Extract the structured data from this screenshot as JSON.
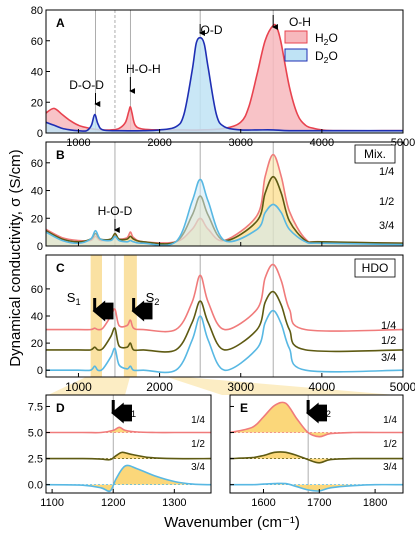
{
  "figure": {
    "ylabel": "Dynamical conductivity, σ (S/cm)",
    "xlabel": "Wavenumber (cm⁻¹)"
  },
  "colors": {
    "h2o": "#e8434f",
    "h2o_fill": "#f7b8bd",
    "d2o": "#1f2fb4",
    "d2o_fill": "#bfe3f5",
    "c14": "#f07b7b",
    "c12": "#5e5a12",
    "c34": "#58b8e3",
    "fill_yellow": "#fbd36b",
    "band": "#f9dc92"
  },
  "chart_data": [
    {
      "panel": "A",
      "type": "line",
      "xlim": [
        600,
        5000
      ],
      "ylim": [
        0,
        80
      ],
      "yticks": [
        0,
        20,
        40,
        60,
        80
      ],
      "xticks": [
        1000,
        2000,
        3000,
        4000,
        5000
      ],
      "legend": [
        "H2O",
        "D2O"
      ],
      "legend_position": "top-right",
      "annotations": [
        {
          "text": "D-O-D",
          "x": 1210
        },
        {
          "text": "H-O-H",
          "x": 1640
        },
        {
          "text": "O-D",
          "x": 2500
        },
        {
          "text": "O-H",
          "x": 3400
        }
      ],
      "series": [
        {
          "name": "H2O",
          "key": "h2o",
          "fill": true,
          "x": [
            600,
            700,
            800,
            900,
            1000,
            1100,
            1200,
            1300,
            1400,
            1500,
            1580,
            1620,
            1640,
            1660,
            1700,
            1800,
            2000,
            2200,
            2500,
            2800,
            3000,
            3100,
            3200,
            3300,
            3400,
            3450,
            3500,
            3600,
            3700,
            3800,
            3900,
            4000,
            4200,
            5000
          ],
          "y": [
            13,
            16,
            12,
            8,
            5,
            3.5,
            2.5,
            2,
            2,
            3,
            7,
            14,
            17,
            13,
            5,
            2.5,
            2,
            2,
            2,
            3,
            7,
            17,
            38,
            60,
            70,
            68,
            58,
            30,
            12,
            5,
            3,
            2,
            1.5,
            1.5
          ]
        },
        {
          "name": "D2O",
          "key": "d2o",
          "fill": true,
          "x": [
            600,
            700,
            800,
            900,
            1000,
            1100,
            1160,
            1200,
            1240,
            1300,
            1500,
            1800,
            2000,
            2200,
            2300,
            2400,
            2450,
            2500,
            2550,
            2600,
            2700,
            2800,
            3000,
            3200,
            3400,
            3600,
            4000,
            5000
          ],
          "y": [
            7,
            5,
            3,
            2,
            1.5,
            1.5,
            5,
            12,
            6,
            2,
            1.5,
            1.5,
            2,
            4,
            12,
            40,
            58,
            62,
            58,
            42,
            12,
            4,
            2,
            2,
            2,
            1.5,
            1.5,
            1.5
          ]
        }
      ]
    },
    {
      "panel": "B",
      "type": "area",
      "label": "Mix.",
      "xlim": [
        600,
        5000
      ],
      "ylim": [
        0,
        75
      ],
      "yticks": [
        0,
        20,
        40,
        60
      ],
      "annotations": [
        {
          "text": "H-O-D",
          "x": 1450
        }
      ],
      "series": [
        {
          "name": "1/4",
          "key": "c14",
          "x": [
            600,
            800,
            1000,
            1150,
            1210,
            1270,
            1400,
            1450,
            1500,
            1600,
            1640,
            1680,
            1800,
            2200,
            2400,
            2500,
            2600,
            2800,
            3200,
            3300,
            3400,
            3500,
            3600,
            3800,
            4000,
            5000
          ],
          "y": [
            12,
            6,
            4,
            4,
            7,
            4,
            5,
            8,
            5,
            6,
            10,
            6,
            3,
            3,
            12,
            20,
            12,
            4,
            22,
            50,
            66,
            50,
            25,
            5,
            3,
            2
          ]
        },
        {
          "name": "1/2",
          "key": "c12",
          "x": [
            600,
            800,
            1000,
            1150,
            1210,
            1270,
            1400,
            1450,
            1500,
            1600,
            1640,
            1680,
            1800,
            2200,
            2400,
            2500,
            2600,
            2800,
            3200,
            3300,
            3400,
            3500,
            3600,
            3800,
            4000,
            5000
          ],
          "y": [
            11,
            5,
            3,
            5,
            9,
            5,
            5,
            9,
            5,
            5,
            7,
            5,
            3,
            3,
            22,
            36,
            22,
            4,
            18,
            38,
            50,
            38,
            18,
            4,
            3,
            2
          ]
        },
        {
          "name": "3/4",
          "key": "c34",
          "x": [
            600,
            800,
            1000,
            1150,
            1210,
            1270,
            1400,
            1450,
            1500,
            1600,
            1640,
            1680,
            1800,
            2200,
            2400,
            2500,
            2600,
            2800,
            3200,
            3300,
            3400,
            3500,
            3600,
            3800,
            4000,
            5000
          ],
          "y": [
            10,
            4,
            2,
            5,
            11,
            5,
            4,
            7,
            4,
            3,
            4,
            3,
            2,
            3,
            32,
            48,
            32,
            4,
            12,
            24,
            30,
            24,
            12,
            3,
            2,
            1
          ]
        }
      ]
    },
    {
      "panel": "C",
      "type": "line",
      "label": "HDO",
      "xlim": [
        600,
        5000
      ],
      "ylim": [
        -5,
        85
      ],
      "yticks": [
        0,
        20,
        40,
        60
      ],
      "annotations": [
        {
          "text": "S1",
          "x": 1200
        },
        {
          "text": "S2",
          "x": 1680
        }
      ],
      "bands": [
        [
          1150,
          1290
        ],
        [
          1560,
          1720
        ]
      ],
      "series": [
        {
          "name": "1/4",
          "key": "c14",
          "x": [
            600,
            1000,
            1150,
            1200,
            1240,
            1300,
            1400,
            1450,
            1500,
            1600,
            1640,
            1680,
            1800,
            2200,
            2400,
            2500,
            2600,
            2800,
            3200,
            3300,
            3400,
            3500,
            3600,
            3800,
            5000
          ],
          "y": [
            30,
            30,
            30,
            31,
            30,
            31,
            40,
            45,
            33,
            33,
            37,
            31,
            30,
            30,
            50,
            70,
            50,
            30,
            45,
            68,
            78,
            66,
            45,
            30,
            30
          ]
        },
        {
          "name": "1/2",
          "key": "c12",
          "x": [
            600,
            1000,
            1150,
            1200,
            1240,
            1300,
            1400,
            1450,
            1500,
            1600,
            1640,
            1680,
            1800,
            2200,
            2400,
            2500,
            2600,
            2800,
            3200,
            3300,
            3400,
            3500,
            3600,
            3800,
            5000
          ],
          "y": [
            15,
            15,
            15,
            17,
            15,
            16,
            25,
            31,
            18,
            17,
            20,
            15,
            15,
            15,
            35,
            51,
            35,
            15,
            30,
            50,
            58,
            48,
            30,
            15,
            15
          ]
        },
        {
          "name": "3/4",
          "key": "c34",
          "x": [
            600,
            1000,
            1150,
            1200,
            1240,
            1300,
            1400,
            1450,
            1500,
            1600,
            1640,
            1680,
            1800,
            2200,
            2400,
            2500,
            2600,
            2800,
            3200,
            3300,
            3400,
            3500,
            3600,
            3800,
            5000
          ],
          "y": [
            0,
            0,
            0,
            3,
            0,
            1,
            10,
            16,
            4,
            1,
            3,
            0,
            0,
            0,
            22,
            40,
            22,
            0,
            16,
            35,
            44,
            34,
            16,
            0,
            0
          ]
        }
      ]
    },
    {
      "panel": "D",
      "type": "line",
      "annotations": [
        {
          "text": "S1",
          "x": 1200
        }
      ],
      "xlim": [
        1090,
        1360
      ],
      "ylim": [
        -0.8,
        8.6
      ],
      "yticks": [
        0.0,
        2.5,
        5.0,
        7.5
      ],
      "xticks": [
        1100,
        1200,
        1300
      ],
      "series": [
        {
          "name": "1/4",
          "key": "c14",
          "baseline": 5.0,
          "x": [
            1090,
            1150,
            1180,
            1200,
            1210,
            1220,
            1240,
            1270,
            1300,
            1360
          ],
          "y": [
            5.0,
            5.0,
            5.0,
            5.2,
            5.5,
            5.2,
            5.05,
            5.0,
            5.0,
            5.0
          ]
        },
        {
          "name": "1/2",
          "key": "c12",
          "baseline": 2.5,
          "x": [
            1090,
            1150,
            1180,
            1195,
            1205,
            1215,
            1230,
            1260,
            1300,
            1360
          ],
          "y": [
            2.5,
            2.5,
            2.45,
            2.4,
            2.8,
            3.1,
            2.9,
            2.6,
            2.5,
            2.5
          ]
        },
        {
          "name": "3/4",
          "key": "c34",
          "baseline": 0.0,
          "x": [
            1090,
            1150,
            1180,
            1195,
            1205,
            1220,
            1240,
            1270,
            1300,
            1330,
            1360
          ],
          "y": [
            0.0,
            -0.05,
            -0.3,
            -0.6,
            0.6,
            1.8,
            1.5,
            0.8,
            0.3,
            0.05,
            0.0
          ]
        }
      ]
    },
    {
      "panel": "E",
      "type": "line",
      "annotations": [
        {
          "text": "S2",
          "x": 1680
        }
      ],
      "xlim": [
        1540,
        1850
      ],
      "ylim": [
        -0.8,
        8.6
      ],
      "yticks": [
        0.0,
        2.5,
        5.0,
        7.5
      ],
      "xticks": [
        1600,
        1700,
        1800
      ],
      "series": [
        {
          "name": "1/4",
          "key": "c14",
          "baseline": 5.0,
          "x": [
            1540,
            1580,
            1600,
            1620,
            1640,
            1660,
            1680,
            1700,
            1720,
            1760,
            1800,
            1850
          ],
          "y": [
            5.0,
            5.5,
            6.5,
            7.6,
            7.8,
            6.3,
            5.0,
            4.6,
            4.9,
            5.0,
            5.0,
            5.0
          ]
        },
        {
          "name": "1/2",
          "key": "c12",
          "baseline": 2.5,
          "x": [
            1540,
            1580,
            1600,
            1620,
            1640,
            1660,
            1680,
            1700,
            1720,
            1760,
            1800,
            1850
          ],
          "y": [
            2.5,
            2.6,
            2.8,
            3.1,
            3.1,
            2.8,
            2.4,
            2.1,
            2.4,
            2.5,
            2.5,
            2.5
          ]
        },
        {
          "name": "3/4",
          "key": "c34",
          "baseline": 0.0,
          "x": [
            1540,
            1580,
            1600,
            1620,
            1640,
            1660,
            1680,
            1700,
            1720,
            1760,
            1800,
            1850
          ],
          "y": [
            0.0,
            0.0,
            0.05,
            0.1,
            0.1,
            -0.2,
            -0.5,
            -0.6,
            -0.3,
            -0.1,
            0.0,
            0.0
          ]
        }
      ]
    }
  ]
}
